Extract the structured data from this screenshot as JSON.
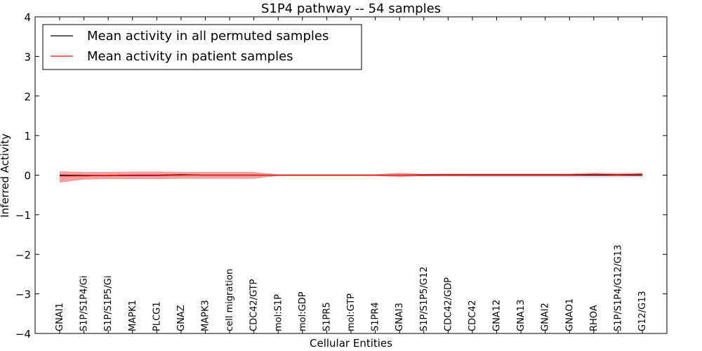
{
  "chart_data": {
    "type": "line",
    "title": "S1P4 pathway -- 54 samples",
    "xlabel": "Cellular Entities",
    "ylabel": "Inferred Activity",
    "ylim": [
      -4,
      4
    ],
    "yticks": [
      4,
      3,
      2,
      1,
      0,
      -1,
      -2,
      -3,
      -4
    ],
    "ytick_labels": [
      "4",
      "3",
      "2",
      "1",
      "0",
      "−1",
      "−2",
      "−3",
      "−4"
    ],
    "grid": false,
    "legend_position": "top-left",
    "categories": [
      "GNAI1",
      "S1P/S1P4/Gi",
      "S1P/S1P5/Gi",
      "MAPK1",
      "PLCG1",
      "GNAZ",
      "MAPK3",
      "cell migration",
      "CDC42/GTP",
      "mol:S1P",
      "mol:GDP",
      "S1PR5",
      "mol:GTP",
      "S1PR4",
      "GNAI3",
      "S1P/S1P5/G12",
      "CDC42/GDP",
      "CDC42",
      "GNA12",
      "GNA13",
      "GNAI2",
      "GNAO1",
      "RHOA",
      "S1P/S1P4/G12/G13",
      "G12/G13"
    ],
    "series": [
      {
        "name": "Mean activity in all permuted samples",
        "color": "#000000",
        "values": [
          0.0,
          -0.01,
          -0.01,
          0.0,
          0.0,
          0.01,
          0.0,
          0.0,
          0.0,
          0.0,
          0.0,
          0.0,
          0.0,
          0.0,
          0.0,
          0.0,
          0.0,
          0.0,
          0.0,
          0.0,
          0.0,
          0.0,
          0.0,
          0.0,
          0.0
        ],
        "band_upper": [
          0.02,
          0.02,
          0.02,
          0.02,
          0.02,
          0.02,
          0.02,
          0.02,
          0.02,
          0.01,
          0.01,
          0.01,
          0.01,
          0.01,
          0.01,
          0.01,
          0.01,
          0.01,
          0.01,
          0.01,
          0.01,
          0.01,
          0.01,
          0.01,
          0.01
        ],
        "band_lower": [
          -0.02,
          -0.03,
          -0.03,
          -0.02,
          -0.02,
          -0.02,
          -0.02,
          -0.02,
          -0.02,
          -0.01,
          -0.01,
          -0.01,
          -0.01,
          -0.01,
          -0.01,
          -0.04,
          -0.04,
          -0.05,
          -0.05,
          -0.05,
          -0.05,
          -0.05,
          -0.05,
          -0.05,
          -0.05
        ]
      },
      {
        "name": "Mean activity in patient samples",
        "color": "#ff0000",
        "band_color": "#f08080",
        "values": [
          -0.02,
          -0.02,
          -0.01,
          -0.01,
          -0.01,
          0.0,
          0.0,
          0.0,
          0.0,
          0.0,
          0.0,
          0.0,
          0.0,
          0.0,
          0.0,
          0.01,
          0.01,
          0.01,
          0.01,
          0.01,
          0.01,
          0.01,
          0.02,
          0.01,
          0.02
        ],
        "band_upper": [
          0.1,
          0.08,
          0.08,
          0.09,
          0.09,
          0.08,
          0.08,
          0.08,
          0.08,
          0.02,
          0.02,
          0.02,
          0.02,
          0.02,
          0.06,
          0.03,
          0.04,
          0.04,
          0.04,
          0.04,
          0.04,
          0.04,
          0.06,
          0.05,
          0.06
        ],
        "band_lower": [
          -0.19,
          -0.11,
          -0.1,
          -0.1,
          -0.1,
          -0.09,
          -0.09,
          -0.09,
          -0.09,
          -0.02,
          -0.02,
          -0.02,
          -0.02,
          -0.02,
          -0.05,
          -0.02,
          -0.01,
          -0.01,
          -0.01,
          -0.01,
          -0.01,
          -0.01,
          0.0,
          0.0,
          0.0
        ]
      }
    ]
  }
}
